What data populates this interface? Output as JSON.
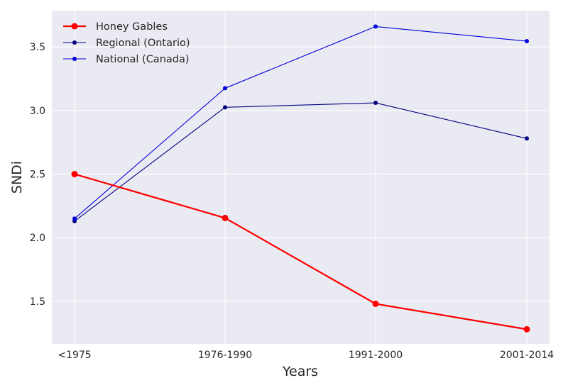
{
  "chart_data": {
    "type": "line",
    "title": "",
    "xlabel": "Years",
    "ylabel": "SNDi",
    "categories": [
      "<1975",
      "1976-1990",
      "1991-2000",
      "2001-2014"
    ],
    "ylim": [
      1.165,
      3.785
    ],
    "yticks": [
      1.5,
      2.0,
      2.5,
      3.0,
      3.5
    ],
    "ytick_labels": [
      "1.5",
      "2.0",
      "2.5",
      "3.0",
      "3.5"
    ],
    "grid": true,
    "legend_position": "top-left",
    "background_color": "#eaeaf2",
    "grid_color": "#ffffff",
    "series": [
      {
        "name": "Honey Gables",
        "values": [
          2.5,
          2.155,
          1.48,
          1.28
        ],
        "color": "#ff0000",
        "emphasis": "thick"
      },
      {
        "name": "Regional (Ontario)",
        "values": [
          2.13,
          3.025,
          3.06,
          2.78
        ],
        "color": "#000080",
        "emphasis": "thin"
      },
      {
        "name": "National (Canada)",
        "values": [
          2.15,
          3.175,
          3.66,
          3.545
        ],
        "color": "#0000dd",
        "emphasis": "thin"
      }
    ]
  }
}
